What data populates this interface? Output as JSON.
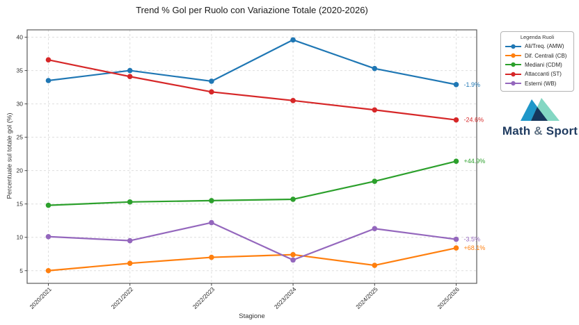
{
  "chart_data": {
    "type": "line",
    "title": "Trend % Gol per Ruolo con Variazione Totale (2020-2026)",
    "xlabel": "Stagione",
    "ylabel": "Percentuale sul totale gol (%)",
    "legend_title": "Legenda Ruoli",
    "legend_position": "outside-upper-right",
    "grid": true,
    "categories": [
      "2020/2021",
      "2021/2022",
      "2022/2023",
      "2023/2024",
      "2024/2025",
      "2025/2026"
    ],
    "yticks": [
      5,
      10,
      15,
      20,
      25,
      30,
      35,
      40
    ],
    "ylim": [
      3.1,
      41.1
    ],
    "series": [
      {
        "name": "Ali/Treq. (AMW)",
        "color": "#1f77b4",
        "values": [
          33.5,
          35.0,
          33.4,
          39.6,
          35.3,
          32.9
        ],
        "end_annotation": "-1.9%"
      },
      {
        "name": "Dif. Centrali (CB)",
        "color": "#ff7f0e",
        "values": [
          5.0,
          6.1,
          7.0,
          7.4,
          5.8,
          8.4
        ],
        "end_annotation": "+68.1%"
      },
      {
        "name": "Mediani (CDM)",
        "color": "#2ca02c",
        "values": [
          14.8,
          15.3,
          15.5,
          15.7,
          18.4,
          21.4
        ],
        "end_annotation": "+44.9%"
      },
      {
        "name": "Attaccanti (ST)",
        "color": "#d62728",
        "values": [
          36.6,
          34.1,
          31.8,
          30.5,
          29.1,
          27.6
        ],
        "end_annotation": "-24.6%"
      },
      {
        "name": "Esterni (WB)",
        "color": "#9467bd",
        "values": [
          10.1,
          9.5,
          12.2,
          6.6,
          11.3,
          9.7
        ],
        "end_annotation": "-3.5%"
      }
    ]
  },
  "logo": {
    "text_math": "Math",
    "text_amp": "&",
    "text_sport": "Sport",
    "color_primary": "#1e3a5f",
    "color_amp": "#5f7183",
    "triangle_left_color": "#1f97c9",
    "triangle_right_color": "#84d7c3",
    "triangle_overlap_color": "#16365c"
  }
}
